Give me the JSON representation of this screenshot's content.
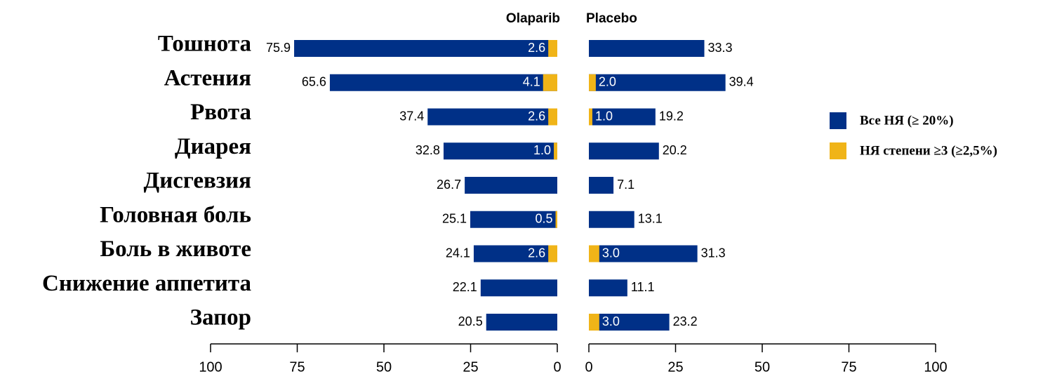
{
  "chart_data": {
    "type": "bar",
    "orientation": "horizontal",
    "categories": [
      "Тошнота",
      "Астения",
      "Рвота",
      "Диарея",
      "Дисгевзия",
      "Головная боль",
      "Боль в животе",
      "Снижение аппетита",
      "Запор"
    ],
    "legend": {
      "position": "right",
      "entries": [
        {
          "name": "Все НЯ (≥ 20%)",
          "color": "#003087"
        },
        {
          "name": "НЯ степени ≥3 (≥2,5%)",
          "color": "#f0b418"
        }
      ]
    },
    "panels": [
      {
        "title": "Olaparib",
        "xlim": [
          100,
          0
        ],
        "xticks": [
          100,
          75,
          50,
          25,
          0
        ],
        "series": [
          {
            "values": [
              75.9,
              65.6,
              37.4,
              32.8,
              26.7,
              25.1,
              24.1,
              22.1,
              20.5
            ]
          },
          {
            "values": [
              2.6,
              4.1,
              2.6,
              1.0,
              null,
              0.5,
              2.6,
              null,
              null
            ],
            "value_labels": [
              "2.6",
              "4.1",
              "2.6",
              "1.0",
              null,
              "0.5",
              "2.6",
              null,
              null
            ]
          }
        ]
      },
      {
        "title": "Placebo",
        "xlim": [
          0,
          100
        ],
        "xticks": [
          0,
          25,
          50,
          75,
          100
        ],
        "series": [
          {
            "values": [
              33.3,
              39.4,
              19.2,
              20.2,
              7.1,
              13.1,
              31.3,
              11.1,
              23.2
            ]
          },
          {
            "values": [
              null,
              2.0,
              1.0,
              null,
              null,
              null,
              3.0,
              null,
              3.0
            ],
            "value_labels": [
              null,
              "2.0",
              "1.0",
              null,
              null,
              null,
              "3.0",
              null,
              "3.0"
            ]
          }
        ]
      }
    ]
  }
}
